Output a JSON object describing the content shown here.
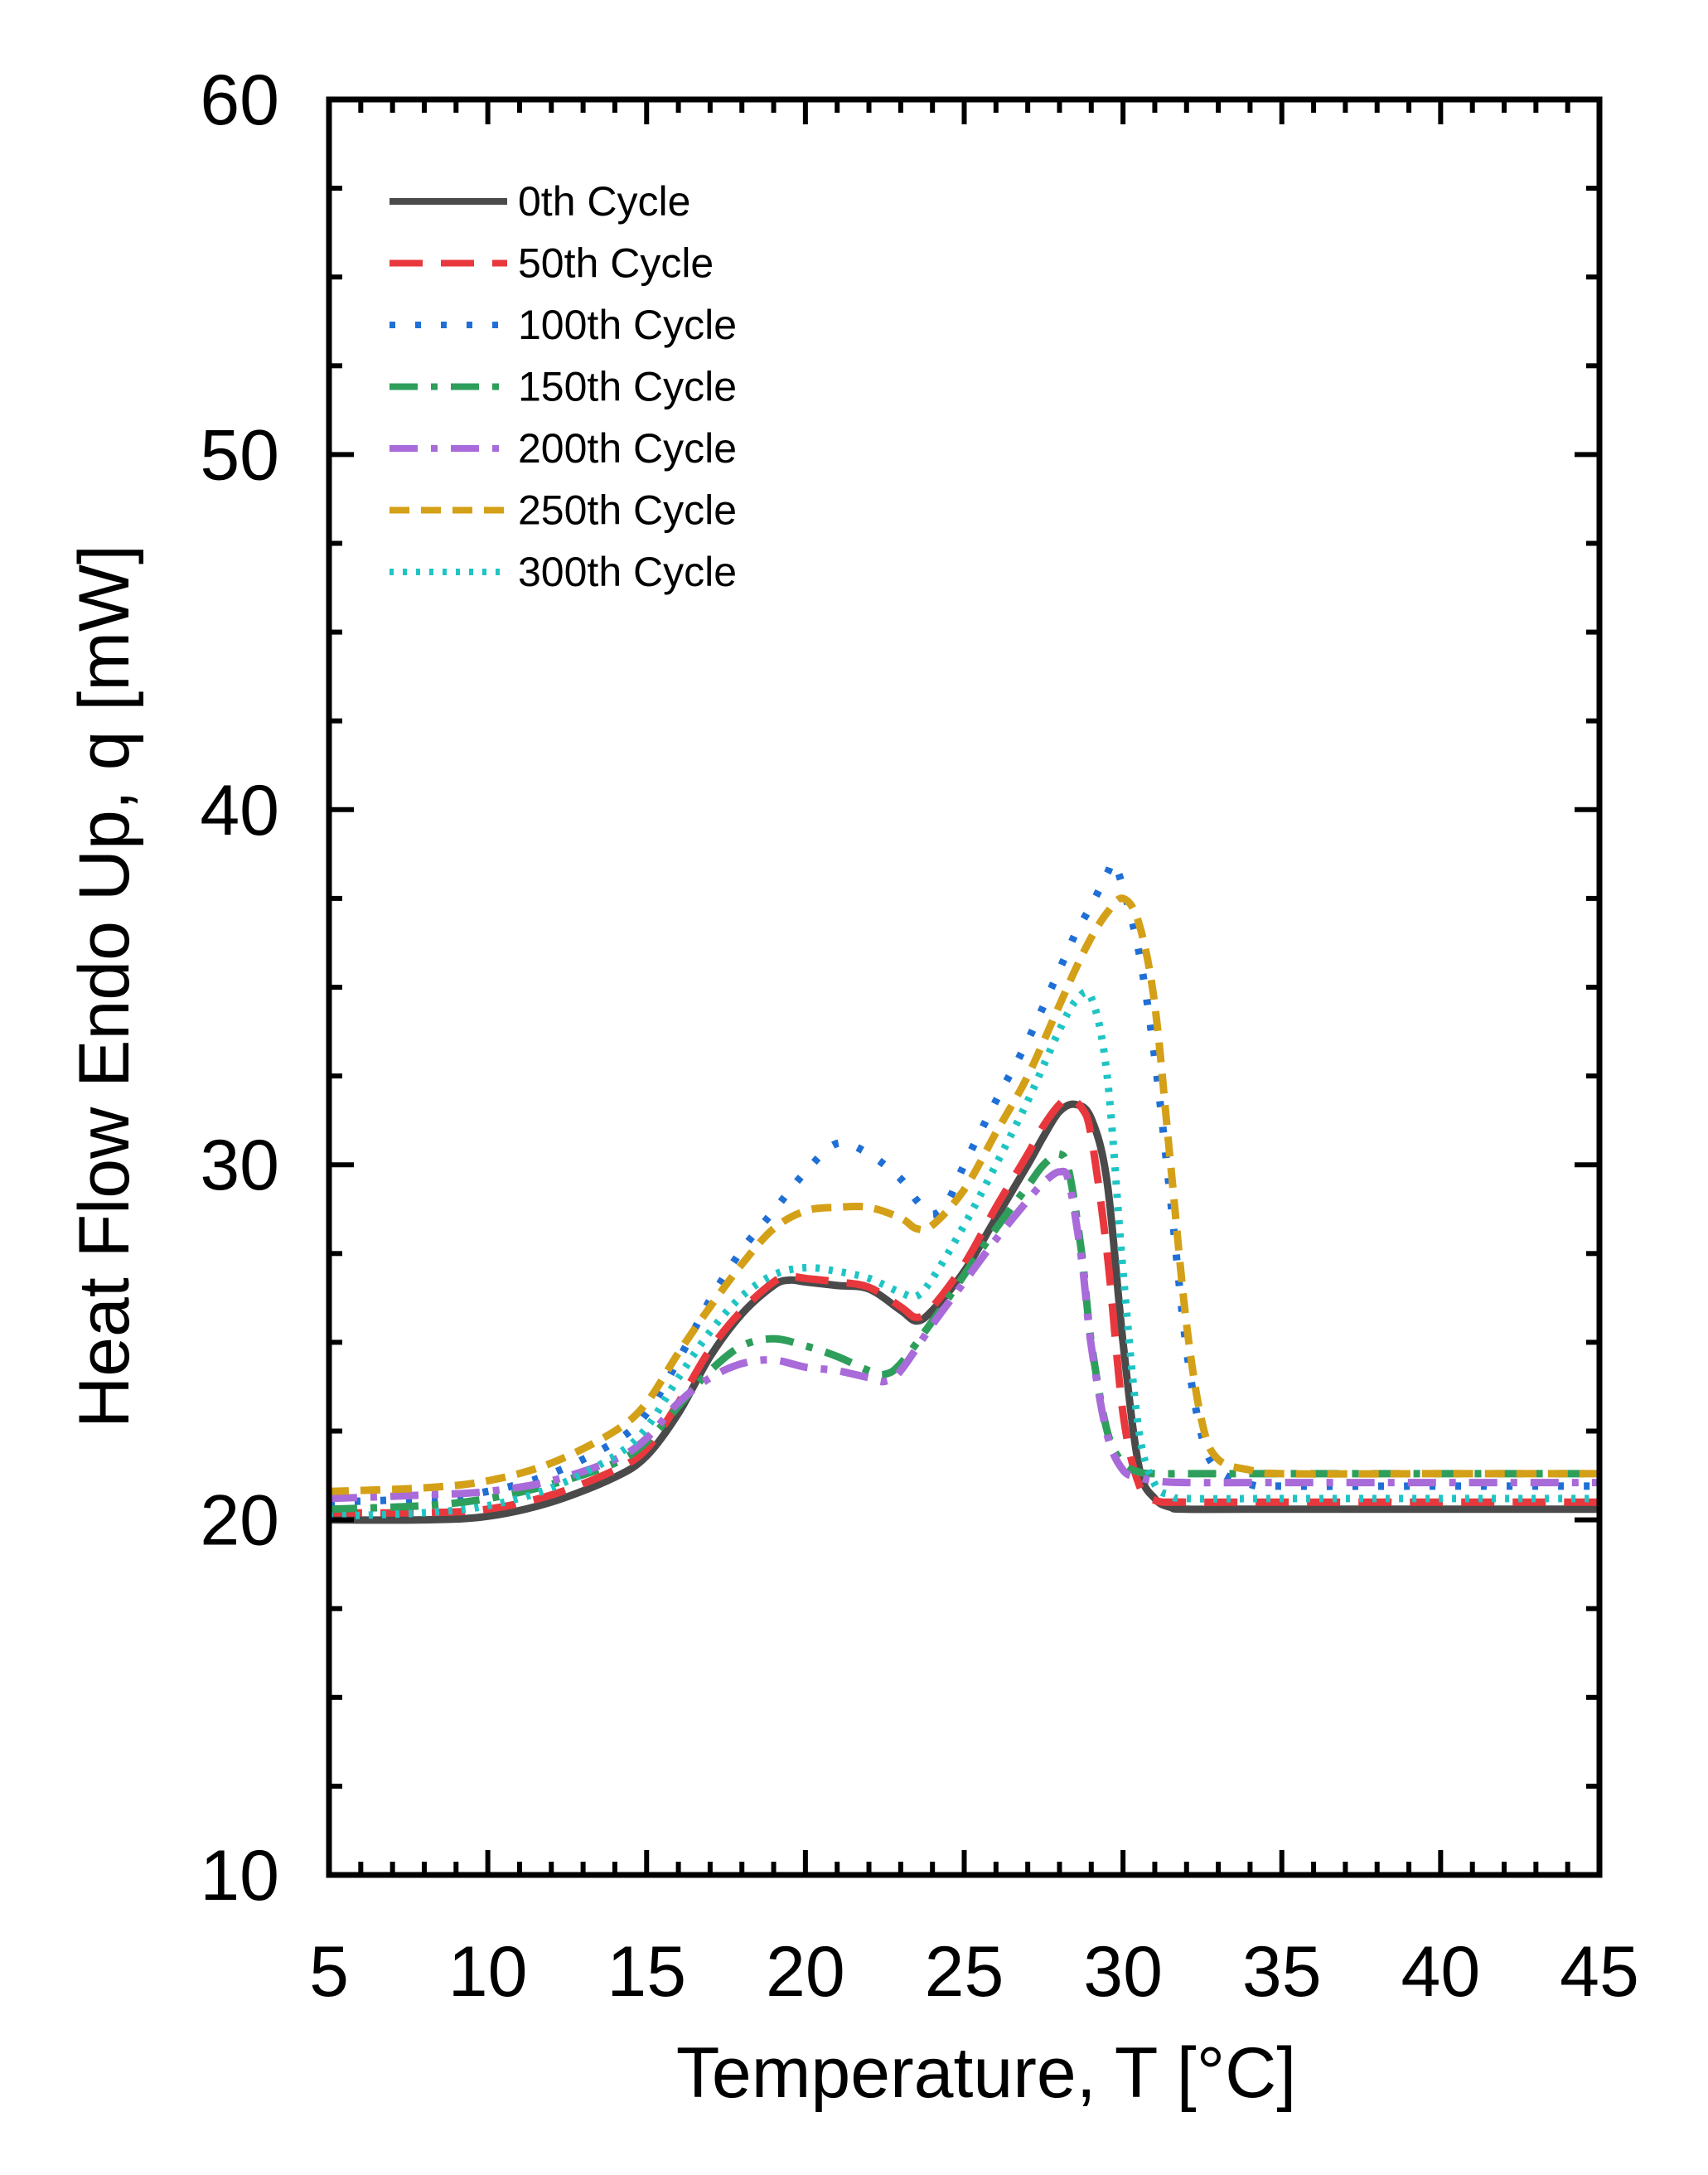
{
  "colors": {
    "axis": "#000000",
    "background": "#ffffff"
  },
  "chart_data": {
    "type": "line",
    "title": "",
    "xlabel": "Temperature, T [°C]",
    "ylabel": "Heat Flow Endo Up, q [mW]",
    "xlim": [
      5,
      45
    ],
    "ylim": [
      10,
      60
    ],
    "xticks": [
      5,
      10,
      15,
      20,
      25,
      30,
      35,
      40,
      45
    ],
    "yticks": [
      10,
      20,
      30,
      40,
      50,
      60
    ],
    "x_minor_step": 1,
    "y_minor_step": 2.5,
    "grid": false,
    "legend_position": "top-left",
    "series": [
      {
        "name": "0th Cycle",
        "color": "#4a4a4a",
        "dash": "solid",
        "points": [
          [
            5,
            20.0
          ],
          [
            8,
            20.0
          ],
          [
            10,
            20.1
          ],
          [
            12,
            20.5
          ],
          [
            14,
            21.2
          ],
          [
            15,
            21.8
          ],
          [
            16,
            23.0
          ],
          [
            17,
            24.6
          ],
          [
            18,
            25.8
          ],
          [
            19,
            26.6
          ],
          [
            19.5,
            26.75
          ],
          [
            20,
            26.7
          ],
          [
            21,
            26.6
          ],
          [
            22,
            26.5
          ],
          [
            23,
            25.9
          ],
          [
            23.5,
            25.6
          ],
          [
            24,
            25.9
          ],
          [
            25,
            27.0
          ],
          [
            26,
            28.5
          ],
          [
            27,
            30.0
          ],
          [
            27.5,
            30.8
          ],
          [
            28,
            31.5
          ],
          [
            28.5,
            31.7
          ],
          [
            29,
            31.3
          ],
          [
            29.5,
            29.5
          ],
          [
            30,
            25.0
          ],
          [
            30.5,
            21.5
          ],
          [
            31,
            20.6
          ],
          [
            31.5,
            20.35
          ],
          [
            32,
            20.3
          ],
          [
            35,
            20.3
          ],
          [
            40,
            20.3
          ],
          [
            45,
            20.3
          ]
        ]
      },
      {
        "name": "50th Cycle",
        "color": "#e8383d",
        "dash": "long-dash",
        "points": [
          [
            5,
            20.2
          ],
          [
            8,
            20.2
          ],
          [
            10,
            20.3
          ],
          [
            12,
            20.7
          ],
          [
            14,
            21.4
          ],
          [
            15,
            22.0
          ],
          [
            16,
            23.3
          ],
          [
            17,
            24.8
          ],
          [
            18,
            25.9
          ],
          [
            19,
            26.7
          ],
          [
            19.5,
            26.85
          ],
          [
            20,
            26.8
          ],
          [
            21,
            26.7
          ],
          [
            22,
            26.55
          ],
          [
            23,
            26.0
          ],
          [
            23.5,
            25.7
          ],
          [
            24,
            26.0
          ],
          [
            25,
            27.2
          ],
          [
            26,
            28.8
          ],
          [
            27,
            30.3
          ],
          [
            27.5,
            31.1
          ],
          [
            28,
            31.7
          ],
          [
            28.3,
            31.85
          ],
          [
            28.7,
            31.6
          ],
          [
            29,
            30.8
          ],
          [
            29.5,
            27.5
          ],
          [
            30,
            23.0
          ],
          [
            30.5,
            21.0
          ],
          [
            31,
            20.55
          ],
          [
            32,
            20.5
          ],
          [
            35,
            20.5
          ],
          [
            40,
            20.5
          ],
          [
            45,
            20.5
          ]
        ]
      },
      {
        "name": "100th Cycle",
        "color": "#1f6fd6",
        "dash": "dot",
        "points": [
          [
            5,
            20.5
          ],
          [
            8,
            20.6
          ],
          [
            10,
            20.8
          ],
          [
            12,
            21.3
          ],
          [
            14,
            22.2
          ],
          [
            15,
            23.0
          ],
          [
            16,
            24.5
          ],
          [
            17,
            26.2
          ],
          [
            18,
            27.6
          ],
          [
            19,
            28.7
          ],
          [
            20,
            29.8
          ],
          [
            21,
            30.6
          ],
          [
            22,
            30.3
          ],
          [
            23,
            29.6
          ],
          [
            23.5,
            29.0
          ],
          [
            24,
            28.6
          ],
          [
            24.5,
            29.0
          ],
          [
            25,
            30.0
          ],
          [
            26,
            31.8
          ],
          [
            27,
            33.5
          ],
          [
            28,
            35.5
          ],
          [
            28.5,
            36.5
          ],
          [
            29,
            37.3
          ],
          [
            29.5,
            38.2
          ],
          [
            29.7,
            38.5
          ],
          [
            30,
            37.8
          ],
          [
            30.5,
            36.0
          ],
          [
            31,
            33.0
          ],
          [
            31.5,
            29.0
          ],
          [
            32,
            24.8
          ],
          [
            32.5,
            22.3
          ],
          [
            33,
            21.4
          ],
          [
            34,
            21.0
          ],
          [
            35,
            20.95
          ],
          [
            40,
            20.95
          ],
          [
            45,
            20.95
          ]
        ]
      },
      {
        "name": "150th Cycle",
        "color": "#2e9e5b",
        "dash": "dash-dot",
        "points": [
          [
            5,
            20.3
          ],
          [
            8,
            20.4
          ],
          [
            10,
            20.6
          ],
          [
            12,
            21.0
          ],
          [
            14,
            21.6
          ],
          [
            15,
            22.2
          ],
          [
            16,
            23.2
          ],
          [
            17,
            24.2
          ],
          [
            18,
            24.9
          ],
          [
            19,
            25.1
          ],
          [
            20,
            24.9
          ],
          [
            21,
            24.6
          ],
          [
            22,
            24.2
          ],
          [
            22.5,
            24.1
          ],
          [
            23,
            24.4
          ],
          [
            24,
            25.6
          ],
          [
            25,
            26.9
          ],
          [
            26,
            28.2
          ],
          [
            27,
            29.4
          ],
          [
            27.5,
            30.0
          ],
          [
            28,
            30.3
          ],
          [
            28.3,
            29.8
          ],
          [
            28.7,
            27.5
          ],
          [
            29,
            25.0
          ],
          [
            29.5,
            22.5
          ],
          [
            30,
            21.6
          ],
          [
            30.5,
            21.35
          ],
          [
            31,
            21.3
          ],
          [
            32,
            21.3
          ],
          [
            35,
            21.3
          ],
          [
            40,
            21.3
          ],
          [
            45,
            21.3
          ]
        ]
      },
      {
        "name": "200th Cycle",
        "color": "#a86bd9",
        "dash": "long-dash-dot",
        "points": [
          [
            5,
            20.6
          ],
          [
            8,
            20.7
          ],
          [
            10,
            20.8
          ],
          [
            12,
            21.1
          ],
          [
            14,
            21.7
          ],
          [
            15,
            22.3
          ],
          [
            16,
            23.3
          ],
          [
            17,
            24.0
          ],
          [
            18,
            24.4
          ],
          [
            19,
            24.5
          ],
          [
            20,
            24.3
          ],
          [
            21,
            24.2
          ],
          [
            22,
            24.0
          ],
          [
            22.5,
            23.9
          ],
          [
            23,
            24.2
          ],
          [
            24,
            25.5
          ],
          [
            25,
            26.7
          ],
          [
            26,
            27.9
          ],
          [
            27,
            29.0
          ],
          [
            27.5,
            29.5
          ],
          [
            28,
            29.8
          ],
          [
            28.3,
            29.5
          ],
          [
            28.7,
            27.3
          ],
          [
            29,
            24.9
          ],
          [
            29.5,
            22.4
          ],
          [
            30,
            21.4
          ],
          [
            30.5,
            21.2
          ],
          [
            31,
            21.1
          ],
          [
            32,
            21.05
          ],
          [
            35,
            21.05
          ],
          [
            40,
            21.05
          ],
          [
            45,
            21.05
          ]
        ]
      },
      {
        "name": "250th Cycle",
        "color": "#d4a017",
        "dash": "dash",
        "points": [
          [
            5,
            20.8
          ],
          [
            8,
            20.9
          ],
          [
            10,
            21.1
          ],
          [
            12,
            21.6
          ],
          [
            14,
            22.5
          ],
          [
            15,
            23.3
          ],
          [
            16,
            24.7
          ],
          [
            17,
            26.0
          ],
          [
            18,
            27.2
          ],
          [
            19,
            28.2
          ],
          [
            20,
            28.7
          ],
          [
            21,
            28.8
          ],
          [
            22,
            28.8
          ],
          [
            23,
            28.5
          ],
          [
            23.5,
            28.2
          ],
          [
            24,
            28.3
          ],
          [
            25,
            29.3
          ],
          [
            26,
            30.9
          ],
          [
            27,
            32.5
          ],
          [
            28,
            34.5
          ],
          [
            28.5,
            35.5
          ],
          [
            29,
            36.4
          ],
          [
            29.5,
            37.1
          ],
          [
            30,
            37.5
          ],
          [
            30.5,
            36.8
          ],
          [
            31,
            34.5
          ],
          [
            31.5,
            30.0
          ],
          [
            32,
            25.5
          ],
          [
            32.5,
            22.7
          ],
          [
            33,
            21.7
          ],
          [
            34,
            21.4
          ],
          [
            35,
            21.3
          ],
          [
            40,
            21.3
          ],
          [
            45,
            21.3
          ]
        ]
      },
      {
        "name": "300th Cycle",
        "color": "#1fc4c4",
        "dash": "fine-dot",
        "points": [
          [
            5,
            20.1
          ],
          [
            8,
            20.2
          ],
          [
            10,
            20.4
          ],
          [
            12,
            20.9
          ],
          [
            14,
            21.8
          ],
          [
            15,
            22.6
          ],
          [
            16,
            24.0
          ],
          [
            17,
            25.3
          ],
          [
            18,
            26.3
          ],
          [
            19,
            26.9
          ],
          [
            20,
            27.1
          ],
          [
            21,
            27.0
          ],
          [
            22,
            26.8
          ],
          [
            23,
            26.4
          ],
          [
            23.5,
            26.3
          ],
          [
            24,
            26.8
          ],
          [
            25,
            28.3
          ],
          [
            26,
            30.0
          ],
          [
            27,
            31.8
          ],
          [
            27.5,
            32.8
          ],
          [
            28,
            33.8
          ],
          [
            28.5,
            34.6
          ],
          [
            29,
            34.7
          ],
          [
            29.5,
            32.5
          ],
          [
            30,
            27.0
          ],
          [
            30.5,
            22.5
          ],
          [
            31,
            21.0
          ],
          [
            31.5,
            20.7
          ],
          [
            32,
            20.6
          ],
          [
            35,
            20.6
          ],
          [
            40,
            20.6
          ],
          [
            45,
            20.6
          ]
        ]
      }
    ]
  }
}
